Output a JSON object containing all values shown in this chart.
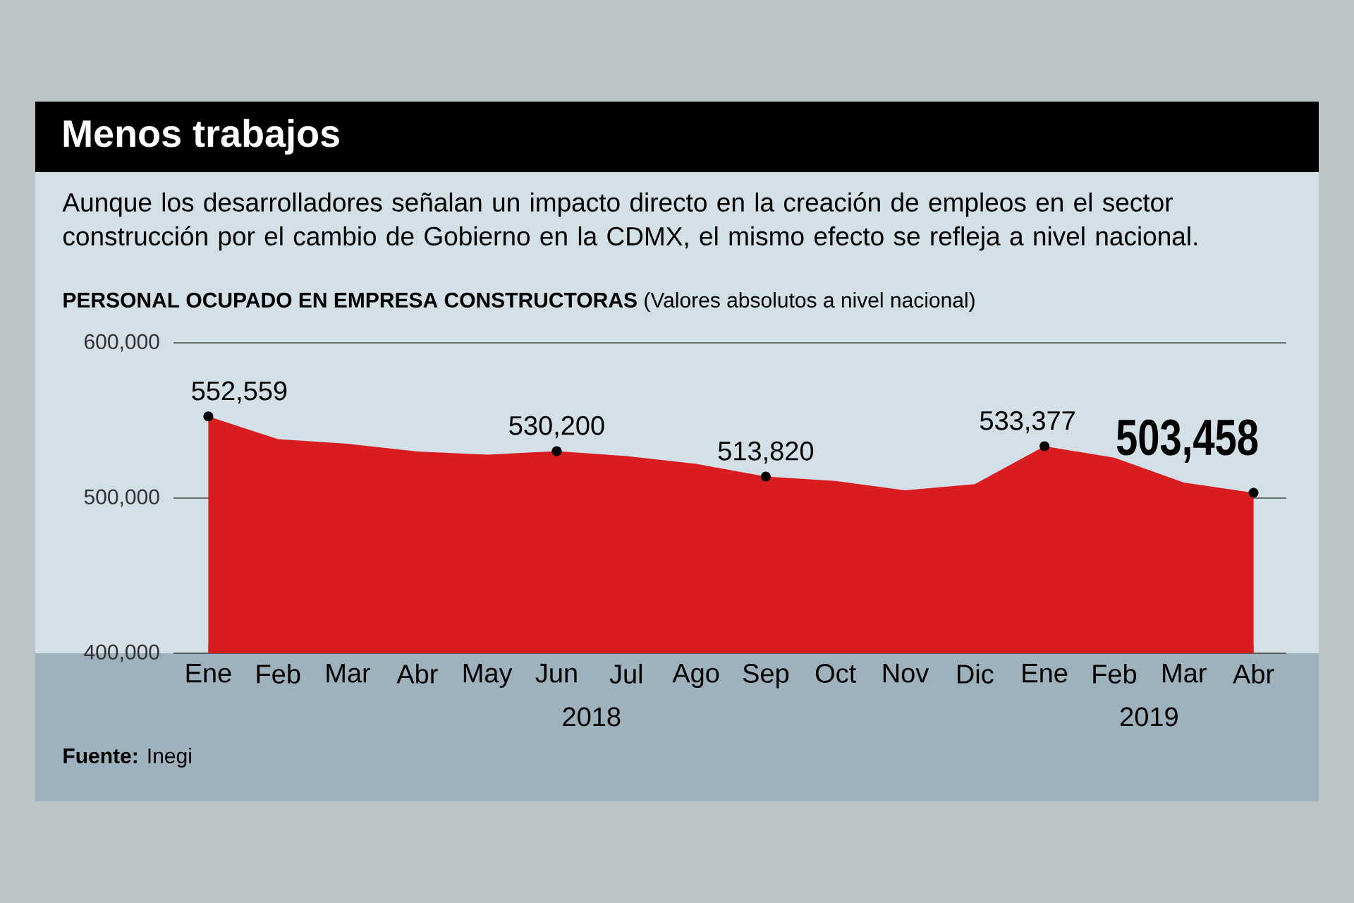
{
  "chart_data": {
    "type": "area",
    "title": "Menos trabajos",
    "subtitle": "Aunque los desarrolladores señalan un impacto directo en la creación de empleos en el sector construcción por el cambio de Gobierno en la CDMX, el mismo efecto se refleja a nivel nacional.",
    "annotations": [
      "**PERSONAL OCUPADO EN EMPRESA CONSTRUCTORAS** (Valores absolutos a nivel nacional)",
      "2018",
      "2019",
      "**Fuente:** Inegi"
    ],
    "categories": [
      "Ene",
      "Feb",
      "Mar",
      "Abr",
      "May",
      "Jun",
      "Jul",
      "Ago",
      "Sep",
      "Oct",
      "Nov",
      "Dic",
      "Ene",
      "Feb",
      "Mar",
      "Abr"
    ],
    "values": [
      552559,
      538000,
      535000,
      530000,
      528000,
      530200,
      527000,
      522000,
      513820,
      511000,
      505000,
      509000,
      533377,
      526000,
      510000,
      503458
    ],
    "value_labels": [
      "552,559",
      null,
      null,
      null,
      null,
      "530,200",
      null,
      null,
      "513,820",
      null,
      null,
      null,
      "533,377",
      null,
      null,
      "503,458"
    ],
    "color": "#d91c1f",
    "ylim": [
      400000,
      600000
    ],
    "yticks": [
      {
        "value": 400000,
        "label": "400,000"
      },
      {
        "value": 500000,
        "label": "500,000"
      },
      {
        "value": 600000,
        "label": "600,000"
      }
    ],
    "grid": "y"
  }
}
